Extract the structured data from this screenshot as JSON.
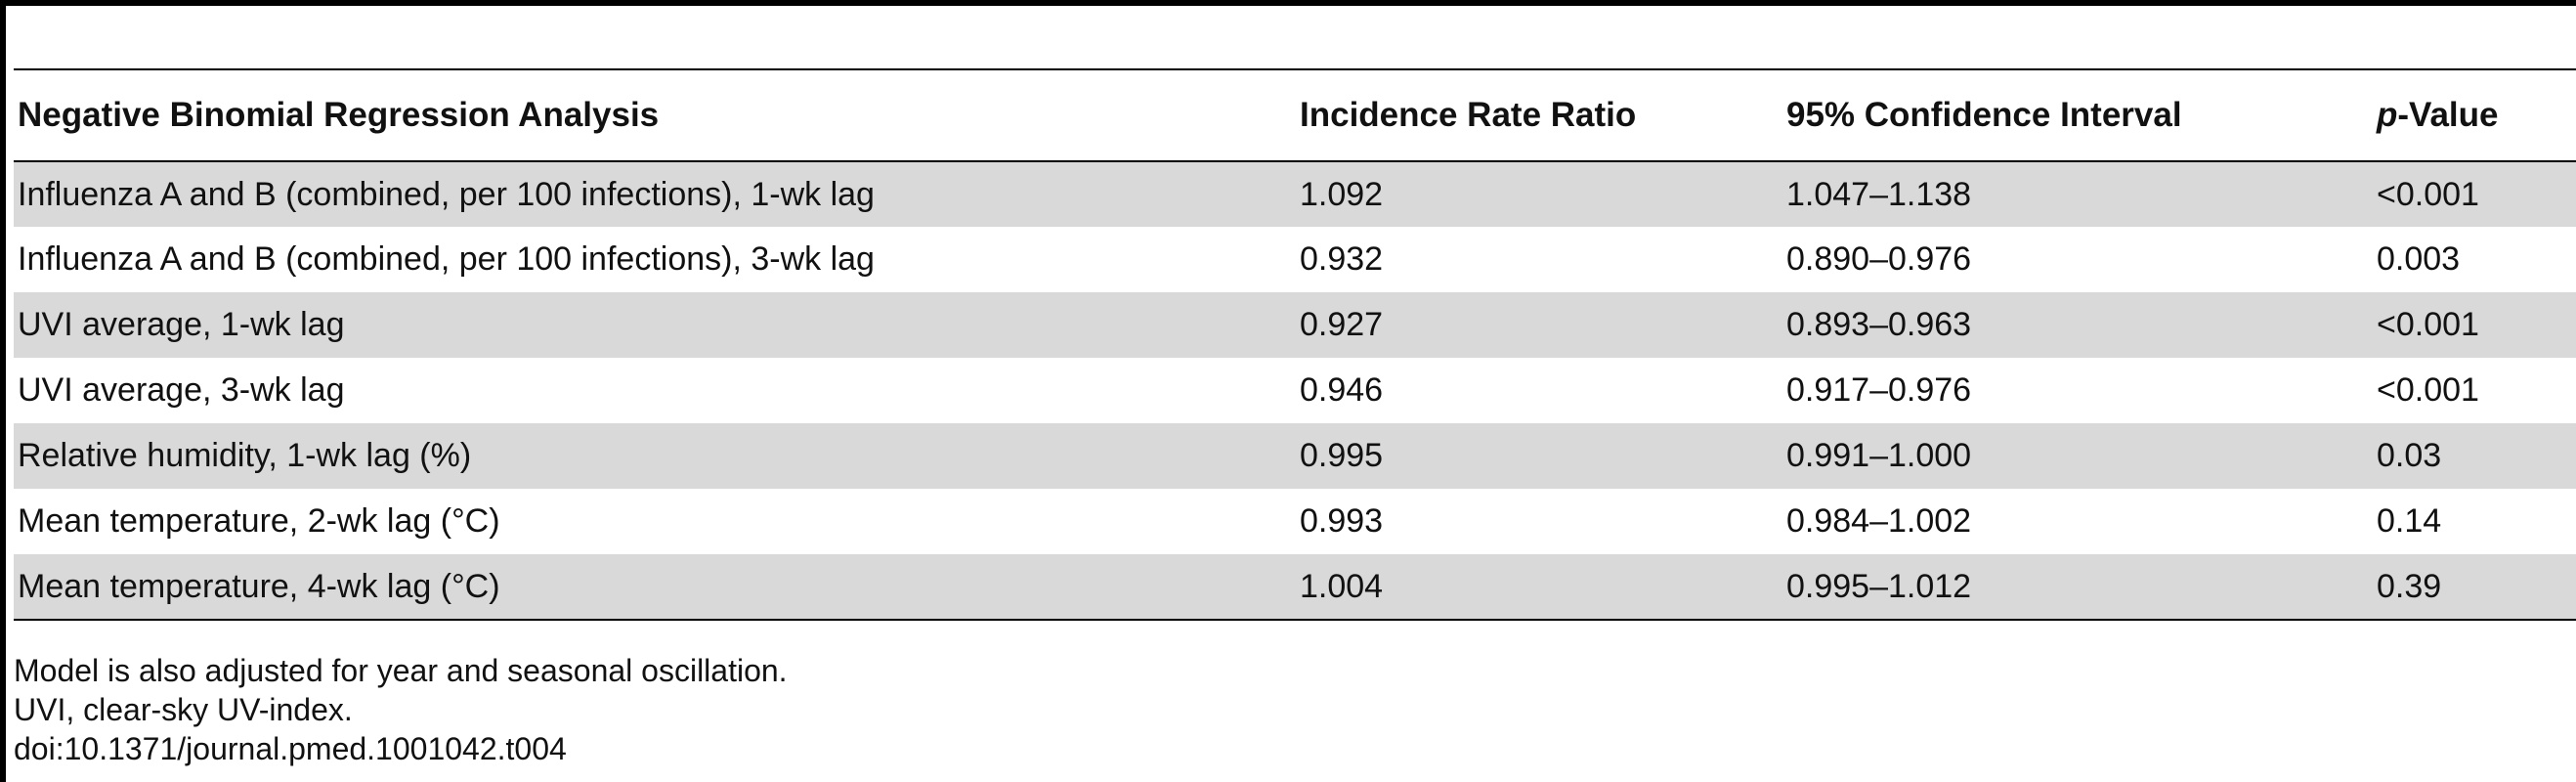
{
  "table": {
    "headers": {
      "analysis": "Negative Binomial Regression Analysis",
      "irr": "Incidence Rate Ratio",
      "ci": "95% Confidence Interval",
      "p_prefix": "p",
      "p_suffix": "-Value"
    },
    "rows": [
      {
        "label": "Influenza A and B (combined, per 100 infections), 1-wk lag",
        "irr": "1.092",
        "ci": "1.047–1.138",
        "p": "<0.001"
      },
      {
        "label": "Influenza A and B (combined, per 100 infections), 3-wk lag",
        "irr": "0.932",
        "ci": "0.890–0.976",
        "p": "0.003"
      },
      {
        "label": "UVI average, 1-wk lag",
        "irr": "0.927",
        "ci": "0.893–0.963",
        "p": "<0.001"
      },
      {
        "label": "UVI average, 3-wk lag",
        "irr": "0.946",
        "ci": "0.917–0.976",
        "p": "<0.001"
      },
      {
        "label": "Relative humidity, 1-wk lag (%)",
        "irr": "0.995",
        "ci": "0.991–1.000",
        "p": "0.03"
      },
      {
        "label": "Mean temperature, 2-wk lag (°C)",
        "irr": "0.993",
        "ci": "0.984–1.002",
        "p": "0.14"
      },
      {
        "label": "Mean temperature, 4-wk lag (°C)",
        "irr": "1.004",
        "ci": "0.995–1.012",
        "p": "0.39"
      }
    ]
  },
  "footnotes": {
    "note1": "Model is also adjusted for year and seasonal oscillation.",
    "note2": "UVI, clear-sky UV-index.",
    "doi": "doi:10.1371/journal.pmed.1001042.t004"
  }
}
